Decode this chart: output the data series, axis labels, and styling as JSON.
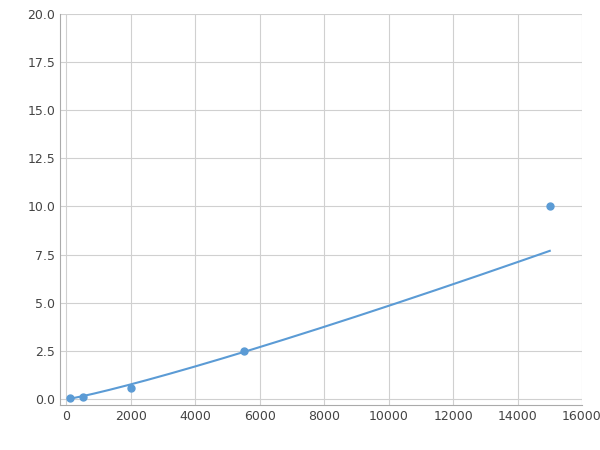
{
  "x_points": [
    125,
    500,
    2000,
    5500,
    15000
  ],
  "y_points": [
    0.05,
    0.1,
    0.6,
    2.5,
    10.0
  ],
  "line_color": "#5b9bd5",
  "marker_color": "#5b9bd5",
  "marker_size": 5,
  "line_width": 1.5,
  "xlim": [
    -200,
    16000
  ],
  "ylim": [
    -0.3,
    20.0
  ],
  "xticks": [
    0,
    2000,
    4000,
    6000,
    8000,
    10000,
    12000,
    14000,
    16000
  ],
  "yticks": [
    0.0,
    2.5,
    5.0,
    7.5,
    10.0,
    12.5,
    15.0,
    17.5,
    20.0
  ],
  "grid_color": "#d0d0d0",
  "background_color": "#ffffff",
  "fig_width": 6.0,
  "fig_height": 4.5
}
